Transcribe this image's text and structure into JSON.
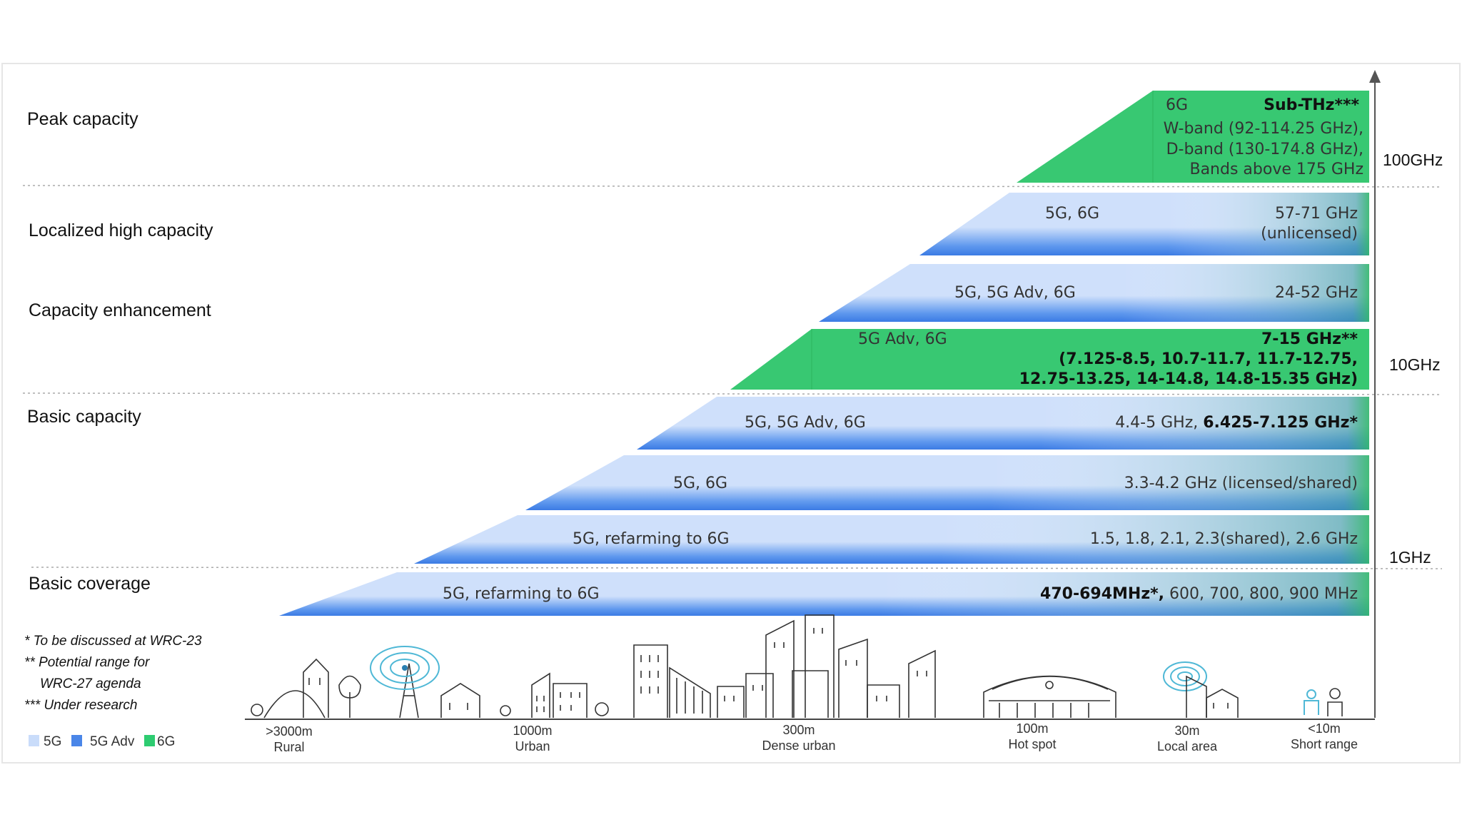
{
  "categories": [
    {
      "label": "Peak capacity"
    },
    {
      "label": "Localized high capacity"
    },
    {
      "label": "Capacity enhancement"
    },
    {
      "label": "Basic capacity"
    },
    {
      "label": "Basic coverage"
    }
  ],
  "bands": [
    {
      "tech": "6G",
      "freq_bold": "Sub-THz***",
      "freq_lines": [
        "W-band (92-114.25 GHz),",
        "D-band (130-174.8 GHz),",
        "Bands above 175 GHz"
      ],
      "type": "6G"
    },
    {
      "tech": "5G, 6G",
      "freq_lines": [
        "57-71 GHz",
        "(unlicensed)"
      ],
      "type": "5G"
    },
    {
      "tech": "5G, 5G Adv, 6G",
      "freq_lines": [
        "24-52 GHz"
      ],
      "type": "5G"
    },
    {
      "tech": "5G Adv, 6G",
      "freq_bold_lines": [
        "7-15 GHz**",
        "(7.125-8.5, 10.7-11.7, 11.7-12.75,",
        "12.75-13.25, 14-14.8, 14.8-15.35 GHz)"
      ],
      "type": "6G"
    },
    {
      "tech": "5G, 5G Adv, 6G",
      "freq_normal": "4.4-5 GHz,",
      "freq_bold": "6.425-7.125 GHz*",
      "type": "5G"
    },
    {
      "tech": "5G, 6G",
      "freq_lines": [
        "3.3-4.2 GHz (licensed/shared)"
      ],
      "type": "5G"
    },
    {
      "tech": "5G, refarming to 6G",
      "freq_lines": [
        "1.5, 1.8, 2.1, 2.3(shared), 2.6 GHz"
      ],
      "type": "5G"
    },
    {
      "tech": "5G, refarming to 6G",
      "freq_bold": "470-694MHz*,",
      "freq_normal": "600, 700, 800, 900 MHz",
      "type": "5G"
    }
  ],
  "axis_labels": [
    "100GHz",
    "10GHz",
    "1GHz"
  ],
  "notes": [
    "* To be discussed at WRC-23",
    "** Potential range for",
    "WRC-27 agenda",
    "*** Under research"
  ],
  "legend": [
    {
      "label": "5G",
      "color": "#c9dcfa"
    },
    {
      "label": "5G Adv",
      "color": "#4a86e8"
    },
    {
      "label": "6G",
      "color": "#2ecc71"
    }
  ],
  "distances": [
    {
      "value": ">3000m",
      "label": "Rural"
    },
    {
      "value": "1000m",
      "label": "Urban"
    },
    {
      "value": "300m",
      "label": "Dense urban"
    },
    {
      "value": "100m",
      "label": "Hot spot"
    },
    {
      "value": "30m",
      "label": "Local area"
    },
    {
      "value": "<10m",
      "label": "Short range"
    }
  ],
  "colors": {
    "g6": "#38c872",
    "blue_light": "#cfe0fb",
    "blue_dark": "#3e7fe6",
    "green_edge": "#45c464"
  }
}
